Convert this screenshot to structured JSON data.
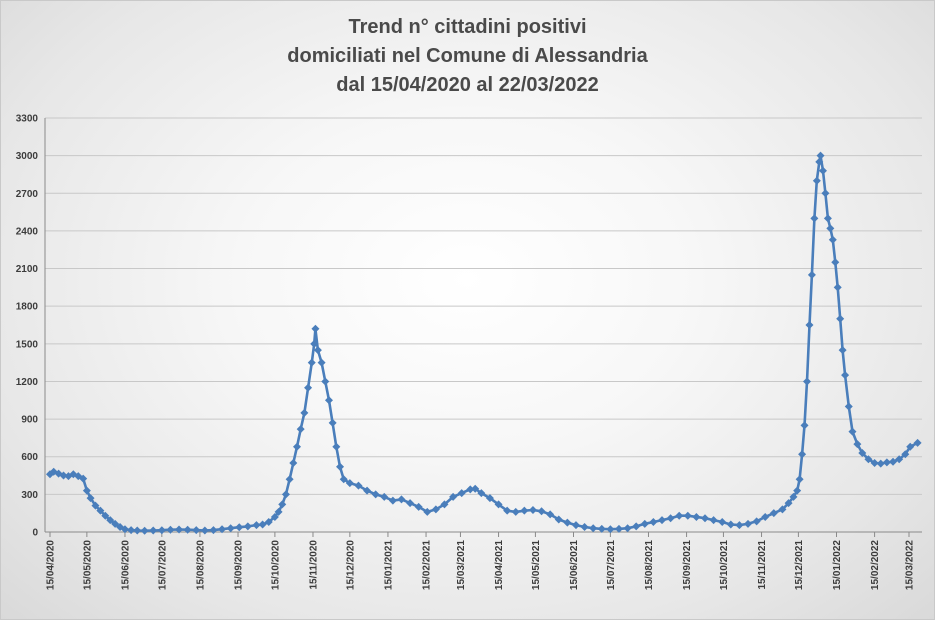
{
  "chart_data": {
    "type": "line",
    "title_lines": [
      "Trend n° cittadini positivi",
      "domiciliati nel Comune di Alessandria",
      "dal 15/04/2020 al 22/03/2022"
    ],
    "xlabel": "",
    "ylabel": "",
    "ylim": [
      0,
      3300
    ],
    "yticks": [
      0,
      300,
      600,
      900,
      1200,
      1500,
      1800,
      2100,
      2400,
      2700,
      3000,
      3300
    ],
    "xlim": [
      "2020-04-15",
      "2022-03-22"
    ],
    "xticks": [
      "15/04/2020",
      "15/05/2020",
      "15/06/2020",
      "15/07/2020",
      "15/08/2020",
      "15/09/2020",
      "15/10/2020",
      "15/11/2020",
      "15/12/2020",
      "15/01/2021",
      "15/02/2021",
      "15/03/2021",
      "15/04/2021",
      "15/05/2021",
      "15/06/2021",
      "15/07/2021",
      "15/08/2021",
      "15/09/2021",
      "15/10/2021",
      "15/11/2021",
      "15/12/2021",
      "15/01/2022",
      "15/02/2022",
      "15/03/2022"
    ],
    "grid": true,
    "legend": false,
    "series_color": "#4a7ebb",
    "series": [
      {
        "values": [
          [
            "2020-04-15",
            460
          ],
          [
            "2020-04-18",
            480
          ],
          [
            "2020-04-22",
            465
          ],
          [
            "2020-04-26",
            450
          ],
          [
            "2020-04-30",
            445
          ],
          [
            "2020-05-04",
            460
          ],
          [
            "2020-05-08",
            445
          ],
          [
            "2020-05-12",
            425
          ],
          [
            "2020-05-15",
            330
          ],
          [
            "2020-05-18",
            270
          ],
          [
            "2020-05-22",
            210
          ],
          [
            "2020-05-26",
            170
          ],
          [
            "2020-05-30",
            130
          ],
          [
            "2020-06-03",
            95
          ],
          [
            "2020-06-07",
            65
          ],
          [
            "2020-06-11",
            40
          ],
          [
            "2020-06-15",
            22
          ],
          [
            "2020-06-20",
            15
          ],
          [
            "2020-06-25",
            12
          ],
          [
            "2020-07-01",
            10
          ],
          [
            "2020-07-08",
            12
          ],
          [
            "2020-07-15",
            14
          ],
          [
            "2020-07-22",
            18
          ],
          [
            "2020-07-29",
            20
          ],
          [
            "2020-08-05",
            18
          ],
          [
            "2020-08-12",
            15
          ],
          [
            "2020-08-19",
            12
          ],
          [
            "2020-08-26",
            15
          ],
          [
            "2020-09-02",
            22
          ],
          [
            "2020-09-09",
            30
          ],
          [
            "2020-09-16",
            38
          ],
          [
            "2020-09-23",
            45
          ],
          [
            "2020-09-30",
            55
          ],
          [
            "2020-10-05",
            60
          ],
          [
            "2020-10-10",
            80
          ],
          [
            "2020-10-15",
            120
          ],
          [
            "2020-10-18",
            160
          ],
          [
            "2020-10-21",
            220
          ],
          [
            "2020-10-24",
            300
          ],
          [
            "2020-10-27",
            420
          ],
          [
            "2020-10-30",
            550
          ],
          [
            "2020-11-02",
            680
          ],
          [
            "2020-11-05",
            820
          ],
          [
            "2020-11-08",
            950
          ],
          [
            "2020-11-11",
            1150
          ],
          [
            "2020-11-14",
            1350
          ],
          [
            "2020-11-16",
            1500
          ],
          [
            "2020-11-17",
            1620
          ],
          [
            "2020-11-19",
            1450
          ],
          [
            "2020-11-22",
            1350
          ],
          [
            "2020-11-25",
            1200
          ],
          [
            "2020-11-28",
            1050
          ],
          [
            "2020-12-01",
            870
          ],
          [
            "2020-12-04",
            680
          ],
          [
            "2020-12-07",
            520
          ],
          [
            "2020-12-10",
            420
          ],
          [
            "2020-12-15",
            390
          ],
          [
            "2020-12-22",
            370
          ],
          [
            "2020-12-29",
            330
          ],
          [
            "2021-01-05",
            300
          ],
          [
            "2021-01-12",
            280
          ],
          [
            "2021-01-19",
            250
          ],
          [
            "2021-01-26",
            260
          ],
          [
            "2021-02-02",
            230
          ],
          [
            "2021-02-09",
            200
          ],
          [
            "2021-02-16",
            160
          ],
          [
            "2021-02-23",
            180
          ],
          [
            "2021-03-02",
            220
          ],
          [
            "2021-03-09",
            280
          ],
          [
            "2021-03-16",
            310
          ],
          [
            "2021-03-23",
            340
          ],
          [
            "2021-03-27",
            345
          ],
          [
            "2021-04-01",
            310
          ],
          [
            "2021-04-08",
            270
          ],
          [
            "2021-04-15",
            220
          ],
          [
            "2021-04-22",
            170
          ],
          [
            "2021-04-29",
            160
          ],
          [
            "2021-05-06",
            170
          ],
          [
            "2021-05-13",
            175
          ],
          [
            "2021-05-20",
            165
          ],
          [
            "2021-05-27",
            140
          ],
          [
            "2021-06-03",
            100
          ],
          [
            "2021-06-10",
            75
          ],
          [
            "2021-06-17",
            55
          ],
          [
            "2021-06-24",
            40
          ],
          [
            "2021-07-01",
            30
          ],
          [
            "2021-07-08",
            25
          ],
          [
            "2021-07-15",
            22
          ],
          [
            "2021-07-22",
            25
          ],
          [
            "2021-07-29",
            30
          ],
          [
            "2021-08-05",
            45
          ],
          [
            "2021-08-12",
            65
          ],
          [
            "2021-08-19",
            80
          ],
          [
            "2021-08-26",
            95
          ],
          [
            "2021-09-02",
            110
          ],
          [
            "2021-09-09",
            130
          ],
          [
            "2021-09-16",
            130
          ],
          [
            "2021-09-23",
            120
          ],
          [
            "2021-09-30",
            110
          ],
          [
            "2021-10-07",
            95
          ],
          [
            "2021-10-14",
            80
          ],
          [
            "2021-10-21",
            60
          ],
          [
            "2021-10-28",
            55
          ],
          [
            "2021-11-04",
            65
          ],
          [
            "2021-11-11",
            85
          ],
          [
            "2021-11-18",
            120
          ],
          [
            "2021-11-25",
            150
          ],
          [
            "2021-12-02",
            180
          ],
          [
            "2021-12-07",
            230
          ],
          [
            "2021-12-11",
            280
          ],
          [
            "2021-12-14",
            330
          ],
          [
            "2021-12-16",
            420
          ],
          [
            "2021-12-18",
            620
          ],
          [
            "2021-12-20",
            850
          ],
          [
            "2021-12-22",
            1200
          ],
          [
            "2021-12-24",
            1650
          ],
          [
            "2021-12-26",
            2050
          ],
          [
            "2021-12-28",
            2500
          ],
          [
            "2021-12-30",
            2800
          ],
          [
            "2022-01-01",
            2950
          ],
          [
            "2022-01-02",
            3000
          ],
          [
            "2022-01-04",
            2880
          ],
          [
            "2022-01-06",
            2700
          ],
          [
            "2022-01-08",
            2500
          ],
          [
            "2022-01-10",
            2420
          ],
          [
            "2022-01-12",
            2330
          ],
          [
            "2022-01-14",
            2150
          ],
          [
            "2022-01-16",
            1950
          ],
          [
            "2022-01-18",
            1700
          ],
          [
            "2022-01-20",
            1450
          ],
          [
            "2022-01-22",
            1250
          ],
          [
            "2022-01-25",
            1000
          ],
          [
            "2022-01-28",
            800
          ],
          [
            "2022-02-01",
            700
          ],
          [
            "2022-02-05",
            630
          ],
          [
            "2022-02-10",
            580
          ],
          [
            "2022-02-15",
            550
          ],
          [
            "2022-02-20",
            545
          ],
          [
            "2022-02-25",
            555
          ],
          [
            "2022-03-02",
            560
          ],
          [
            "2022-03-07",
            580
          ],
          [
            "2022-03-12",
            620
          ],
          [
            "2022-03-16",
            680
          ],
          [
            "2022-03-22",
            710
          ]
        ]
      }
    ]
  }
}
